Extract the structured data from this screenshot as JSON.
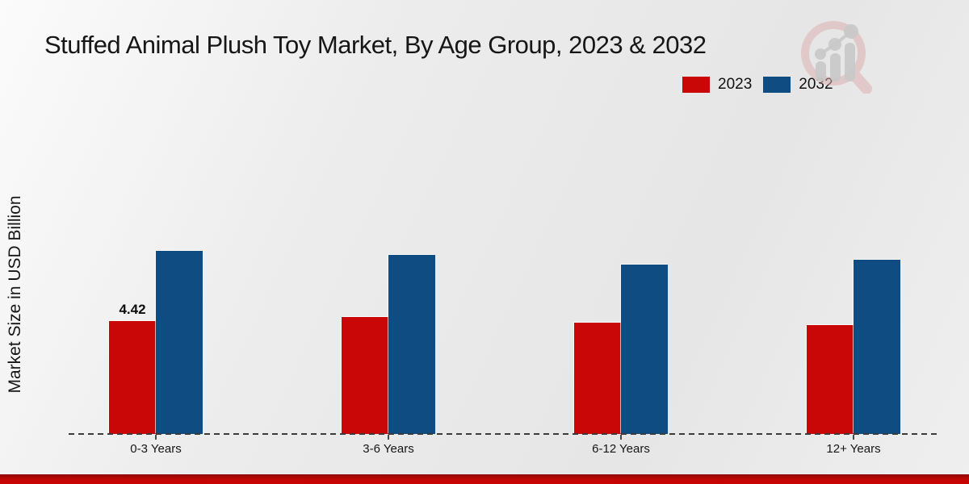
{
  "chart_data": {
    "type": "bar",
    "title": "Stuffed Animal Plush Toy Market, By Age Group, 2023 & 2032",
    "ylabel": "Market Size in USD Billion",
    "xlabel": "",
    "categories": [
      "0-3 Years",
      "3-6 Years",
      "6-12 Years",
      "12+ Years"
    ],
    "series": [
      {
        "name": "2023",
        "color": "#c90707",
        "values": [
          4.42,
          4.58,
          4.36,
          4.26
        ]
      },
      {
        "name": "2032",
        "color": "#0f4c81",
        "values": [
          7.17,
          7.01,
          6.63,
          6.82
        ]
      }
    ],
    "ylim": [
      0,
      8
    ],
    "grid": false,
    "legend_position": "top-right",
    "baseline_style": "dashed",
    "annotations": [
      {
        "text": "4.42",
        "series_index": 0,
        "category_index": 0
      }
    ]
  },
  "branding": {
    "logo_icon": "magnifier-bar-chart-logo"
  },
  "colors": {
    "series_2023": "#c90707",
    "series_2032": "#0f4c81",
    "bottom_strip": "#c20505",
    "background": "#ebebeb"
  }
}
